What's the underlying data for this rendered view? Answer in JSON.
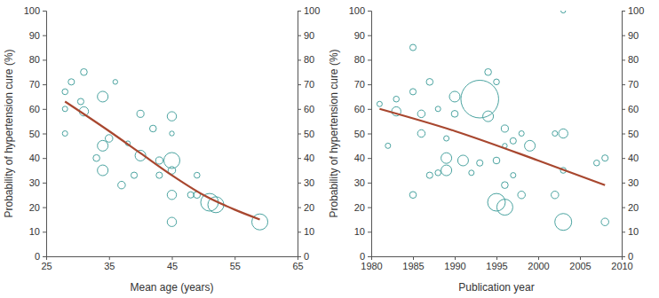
{
  "chart_data": [
    {
      "type": "scatter",
      "x_label": "Mean age (years)",
      "y_label": "Probability of hypertension cure (%)",
      "xlim": [
        25,
        65
      ],
      "ylim": [
        0,
        100
      ],
      "xticks": [
        25,
        35,
        45,
        55,
        65
      ],
      "yticks": [
        0,
        10,
        20,
        30,
        40,
        50,
        60,
        70,
        80,
        90,
        100
      ],
      "series": [
        {
          "type": "scatter",
          "marker": "circle",
          "color": "#4aa3a0",
          "x": [
            28,
            28,
            28,
            29,
            31,
            30.5,
            31,
            36,
            34,
            35,
            34,
            34,
            33,
            37,
            38,
            39,
            40,
            40,
            42,
            43,
            43,
            45,
            45,
            45,
            45,
            45,
            45,
            48,
            49,
            49,
            51,
            52,
            59
          ],
          "values": [
            67,
            60,
            50,
            71,
            75,
            63,
            59,
            71,
            65,
            48,
            45,
            35,
            40,
            29,
            46,
            33,
            41,
            58,
            52,
            39,
            33,
            57,
            50,
            39,
            35,
            25,
            14,
            25,
            25,
            33,
            22,
            21,
            14
          ],
          "sizes": [
            12,
            10,
            10,
            14,
            16,
            14,
            30,
            8,
            40,
            20,
            40,
            40,
            16,
            20,
            8,
            14,
            40,
            18,
            16,
            18,
            14,
            30,
            8,
            90,
            20,
            30,
            30,
            14,
            16,
            12,
            110,
            90,
            90
          ]
        },
        {
          "type": "line",
          "line_style": "solid",
          "color": "#a8472f",
          "x": [
            28,
            35,
            40,
            45,
            50,
            55,
            59
          ],
          "values": [
            63,
            51,
            42,
            33,
            25,
            19,
            15
          ]
        }
      ]
    },
    {
      "type": "scatter",
      "x_label": "Publication year",
      "y_label": "Probability of hypertension cure (%)",
      "xlim": [
        1980,
        2010
      ],
      "ylim": [
        0,
        100
      ],
      "xticks": [
        1980,
        1985,
        1990,
        1995,
        2000,
        2005,
        2010
      ],
      "yticks": [
        0,
        10,
        20,
        30,
        40,
        50,
        60,
        70,
        80,
        90,
        100
      ],
      "series": [
        {
          "type": "scatter",
          "marker": "circle",
          "color": "#4aa3a0",
          "x": [
            1981,
            1982,
            1983,
            1983,
            1985,
            1985,
            1985,
            1986,
            1986,
            1987,
            1987,
            1988,
            1988,
            1989,
            1989,
            1989,
            1990,
            1990,
            1991,
            1992,
            1993,
            1993,
            1994,
            1994,
            1995,
            1995,
            1995,
            1996,
            1996,
            1996,
            1996,
            1997,
            1997,
            1998,
            1998,
            1999,
            2002,
            2002,
            2003,
            2003,
            2003,
            2003,
            2007,
            2008,
            2008
          ],
          "values": [
            62,
            45,
            64,
            59,
            85,
            67,
            25,
            58,
            50,
            71,
            33,
            34,
            60,
            40,
            35,
            48,
            58,
            65,
            39,
            34,
            64,
            38,
            75,
            57,
            71,
            39,
            22,
            52,
            45,
            29,
            20,
            47,
            33,
            50,
            25,
            45,
            50,
            25,
            50,
            35,
            100,
            14,
            38,
            40,
            14
          ],
          "sizes": [
            10,
            10,
            12,
            30,
            14,
            14,
            16,
            20,
            20,
            16,
            14,
            12,
            10,
            40,
            40,
            10,
            16,
            40,
            40,
            10,
            500,
            14,
            16,
            40,
            12,
            16,
            110,
            18,
            8,
            16,
            90,
            14,
            10,
            10,
            20,
            40,
            10,
            20,
            30,
            12,
            8,
            100,
            12,
            14,
            20
          ]
        },
        {
          "type": "line",
          "line_style": "solid",
          "color": "#a8472f",
          "x": [
            1981,
            1990,
            2000,
            2008
          ],
          "values": [
            60,
            51,
            39,
            29
          ]
        }
      ]
    }
  ]
}
